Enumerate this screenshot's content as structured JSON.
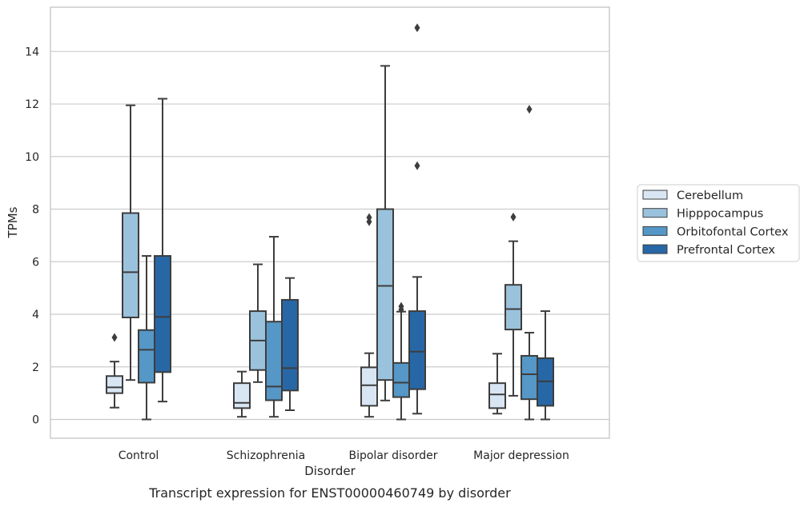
{
  "chart_data": {
    "type": "box",
    "caption": "Transcript expression for ENST00000460749 by disorder",
    "xlabel": "Disorder",
    "ylabel": "TPMs",
    "ylim": [
      -0.7,
      15.5
    ],
    "yticks": [
      0,
      2,
      4,
      6,
      8,
      10,
      12,
      14
    ],
    "grid": true,
    "legend_position": "right",
    "categories": [
      "Control",
      "Schizophrenia",
      "Bipolar disorder",
      "Major depression"
    ],
    "series": [
      {
        "name": "Cerebellum",
        "color": "#d8e6f4",
        "boxes": [
          {
            "whisker_low": 0.45,
            "q1": 1.0,
            "median": 1.22,
            "q3": 1.65,
            "whisker_high": 2.2,
            "outliers": [
              3.12
            ]
          },
          {
            "whisker_low": 0.1,
            "q1": 0.43,
            "median": 0.63,
            "q3": 1.38,
            "whisker_high": 1.82,
            "outliers": []
          },
          {
            "whisker_low": 0.1,
            "q1": 0.52,
            "median": 1.3,
            "q3": 1.98,
            "whisker_high": 2.52,
            "outliers": [
              7.52,
              7.68
            ]
          },
          {
            "whisker_low": 0.22,
            "q1": 0.43,
            "median": 0.95,
            "q3": 1.38,
            "whisker_high": 2.5,
            "outliers": []
          }
        ]
      },
      {
        "name": "Hipppocampus",
        "color": "#9ac2dc",
        "boxes": [
          {
            "whisker_low": 1.5,
            "q1": 3.88,
            "median": 5.6,
            "q3": 7.85,
            "whisker_high": 11.95,
            "outliers": []
          },
          {
            "whisker_low": 1.42,
            "q1": 1.88,
            "median": 3.0,
            "q3": 4.12,
            "whisker_high": 5.9,
            "outliers": []
          },
          {
            "whisker_low": 0.72,
            "q1": 1.5,
            "median": 5.08,
            "q3": 8.0,
            "whisker_high": 13.45,
            "outliers": []
          },
          {
            "whisker_low": 0.9,
            "q1": 3.42,
            "median": 4.2,
            "q3": 5.12,
            "whisker_high": 6.78,
            "outliers": [
              7.7
            ]
          }
        ]
      },
      {
        "name": "Orbitofontal Cortex",
        "color": "#5597c6",
        "boxes": [
          {
            "whisker_low": 0.0,
            "q1": 1.4,
            "median": 2.65,
            "q3": 3.4,
            "whisker_high": 6.22,
            "outliers": []
          },
          {
            "whisker_low": 0.1,
            "q1": 0.73,
            "median": 1.25,
            "q3": 3.72,
            "whisker_high": 6.95,
            "outliers": []
          },
          {
            "whisker_low": 0.0,
            "q1": 0.85,
            "median": 1.4,
            "q3": 2.15,
            "whisker_high": 4.1,
            "outliers": [
              4.18,
              4.3
            ]
          },
          {
            "whisker_low": 0.0,
            "q1": 0.77,
            "median": 1.72,
            "q3": 2.42,
            "whisker_high": 3.3,
            "outliers": [
              11.8
            ]
          }
        ]
      },
      {
        "name": "Prefrontal Cortex",
        "color": "#2767a6",
        "boxes": [
          {
            "whisker_low": 0.68,
            "q1": 1.8,
            "median": 3.9,
            "q3": 6.22,
            "whisker_high": 12.2,
            "outliers": []
          },
          {
            "whisker_low": 0.35,
            "q1": 1.1,
            "median": 1.95,
            "q3": 4.55,
            "whisker_high": 5.38,
            "outliers": []
          },
          {
            "whisker_low": 0.22,
            "q1": 1.15,
            "median": 2.58,
            "q3": 4.12,
            "whisker_high": 5.42,
            "outliers": [
              9.65,
              14.9
            ]
          },
          {
            "whisker_low": 0.0,
            "q1": 0.52,
            "median": 1.45,
            "q3": 2.33,
            "whisker_high": 4.12,
            "outliers": []
          }
        ]
      }
    ]
  }
}
